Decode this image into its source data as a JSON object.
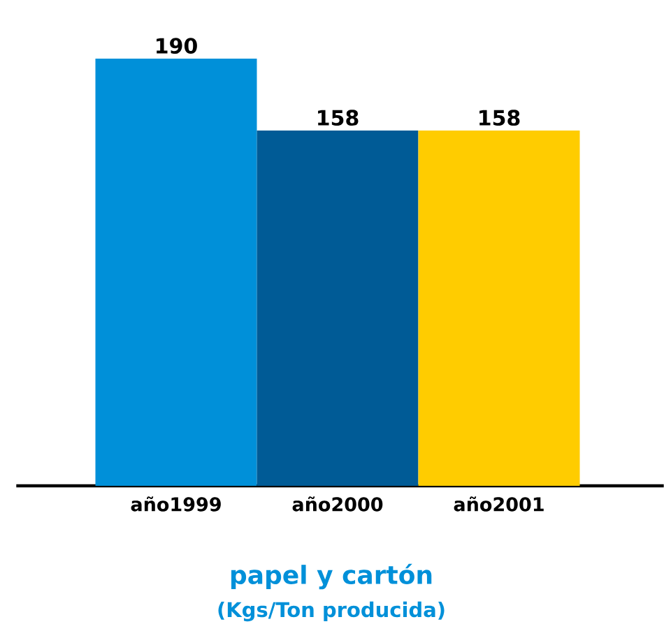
{
  "chart_data": {
    "type": "bar",
    "title": "papel y cartón",
    "subtitle": "(Kgs/Ton producida)",
    "categories": [
      "año1999",
      "año2000",
      "año2001"
    ],
    "values": [
      190,
      158,
      158
    ],
    "colors": [
      "#0090d9",
      "#005b96",
      "#ffcc00"
    ],
    "data_labels": true
  }
}
